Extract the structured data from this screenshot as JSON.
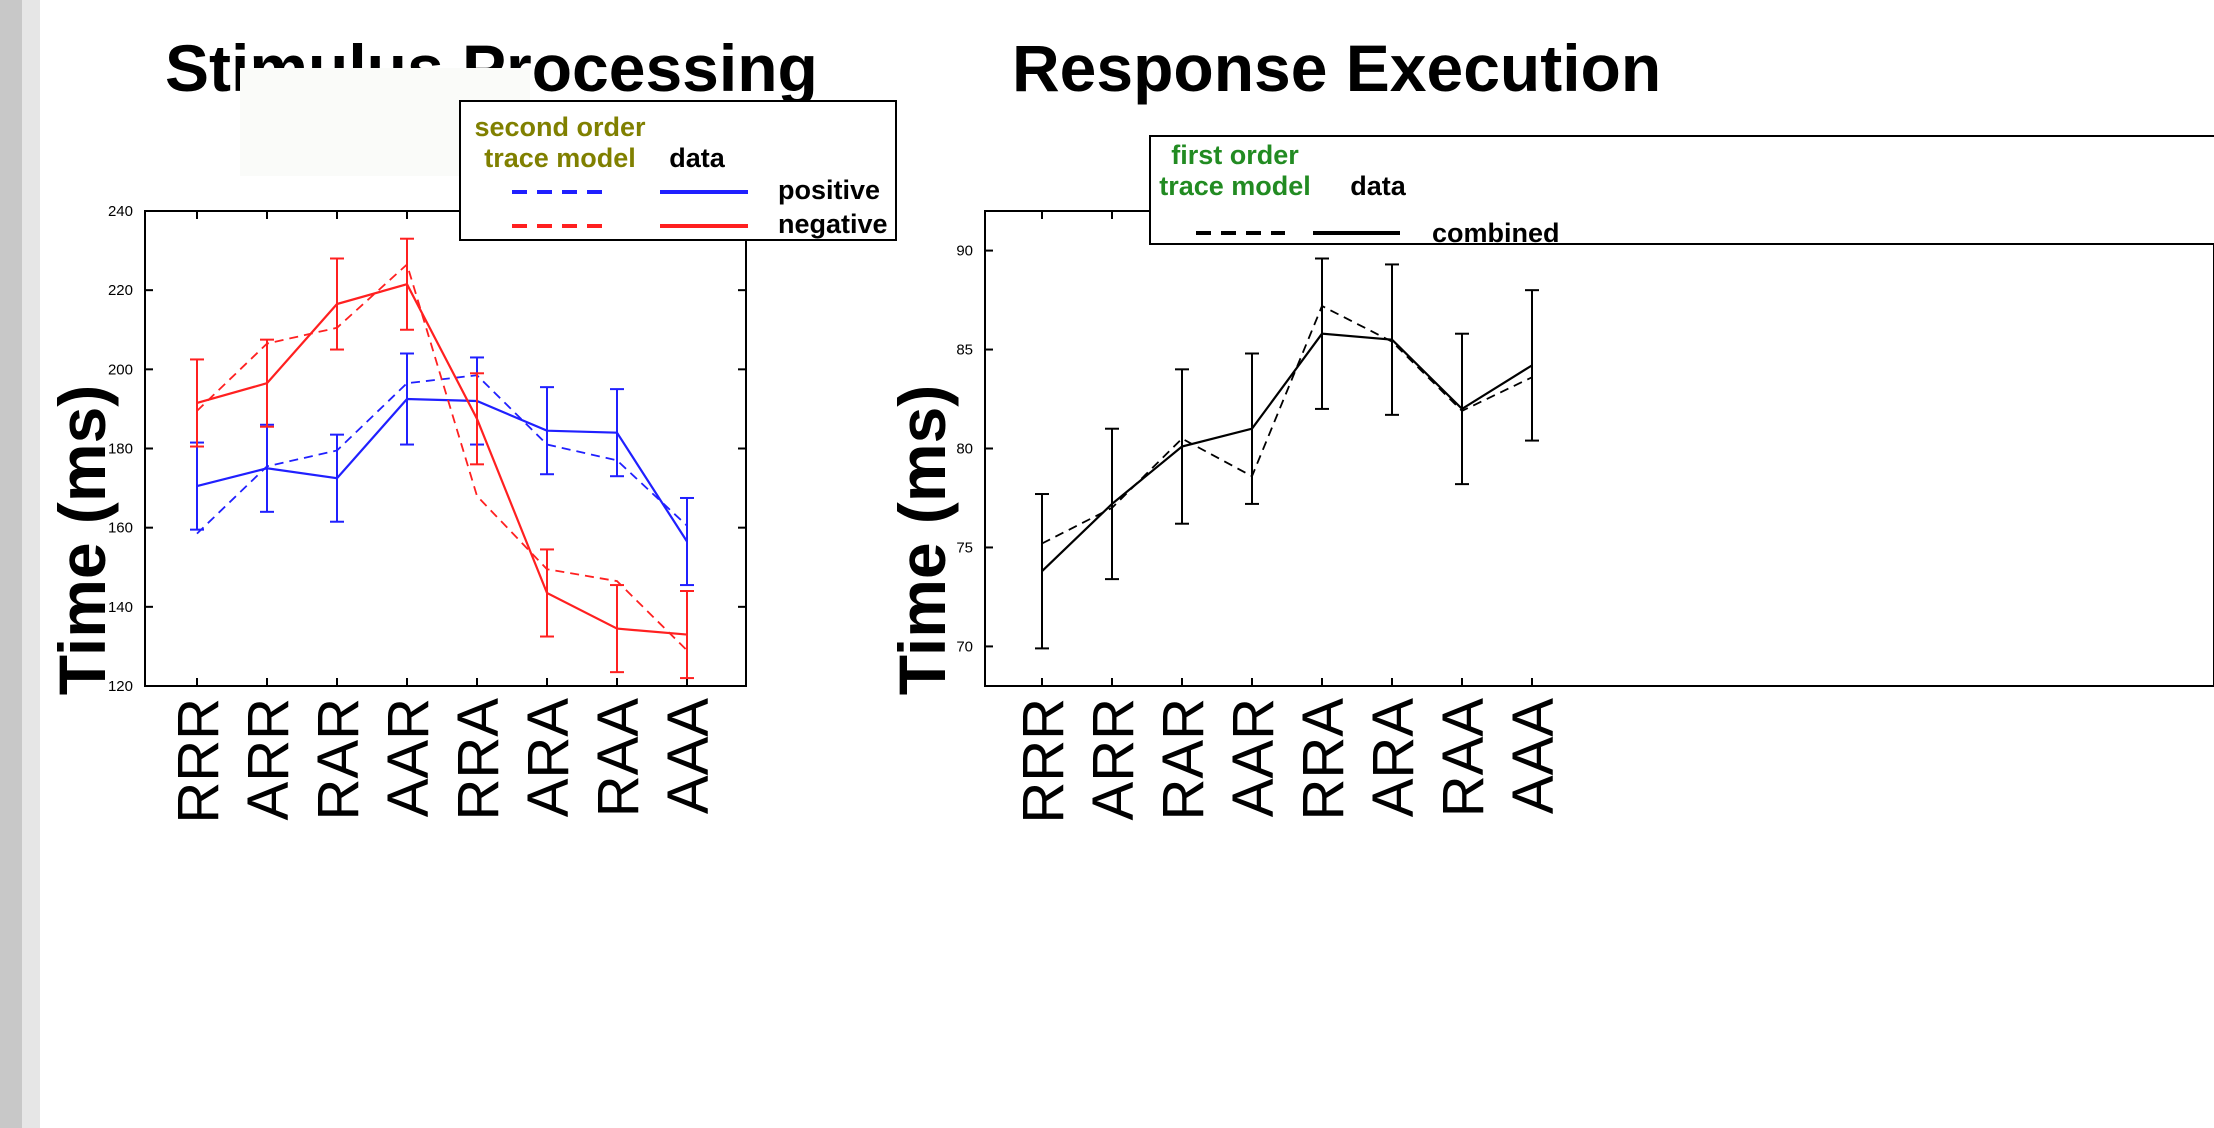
{
  "chart_data": [
    {
      "type": "line",
      "title": "Stimulus Processing",
      "ylabel": "Time (ms)",
      "xlabel": "",
      "categories": [
        "RRR",
        "ARR",
        "RAR",
        "AAR",
        "RRA",
        "ARA",
        "RAA",
        "AAA"
      ],
      "ylim": [
        120,
        240
      ],
      "yticks": [
        "120",
        "140",
        "160",
        "180",
        "200",
        "220",
        "240"
      ],
      "grid": false,
      "legend": {
        "placement": "top-right",
        "model_header": "second order trace model",
        "model_header_lines": [
          "second order",
          "trace model"
        ],
        "data_header": "data",
        "rows": [
          "positive",
          "negative"
        ]
      },
      "series": [
        {
          "name": "positive",
          "style": "data",
          "color": "#2020ff",
          "values": [
            170.5,
            175,
            172.5,
            192.5,
            192,
            184.5,
            184,
            156.5
          ],
          "err": [
            11,
            11,
            11,
            11.5,
            11,
            11,
            11,
            11
          ]
        },
        {
          "name": "positive",
          "style": "model",
          "color": "#2020ff",
          "values": [
            158.5,
            175.5,
            179.5,
            196.5,
            198.5,
            181,
            177,
            160.5
          ]
        },
        {
          "name": "negative",
          "style": "data",
          "color": "#ff2020",
          "values": [
            191.5,
            196.5,
            216.5,
            221.5,
            187.5,
            143.5,
            134.5,
            133
          ],
          "err": [
            11,
            11,
            11.5,
            11.5,
            11.5,
            11,
            11,
            11
          ]
        },
        {
          "name": "negative",
          "style": "model",
          "color": "#ff2020",
          "values": [
            189.5,
            206.5,
            210.5,
            226.5,
            168,
            149.5,
            146.5,
            129
          ]
        }
      ],
      "colors": {
        "header": "#808000"
      }
    },
    {
      "type": "line",
      "title": "Response Execution",
      "ylabel": "Time (ms)",
      "xlabel": "",
      "categories": [
        "RRR",
        "ARR",
        "RAR",
        "AAR",
        "RRA",
        "ARA",
        "RAA",
        "AAA"
      ],
      "ylim": [
        68,
        92
      ],
      "yticks": [
        "70",
        "75",
        "80",
        "85",
        "90"
      ],
      "grid": false,
      "legend": {
        "placement": "top-right",
        "model_header": "first order trace model",
        "model_header_lines": [
          "first order",
          "trace model"
        ],
        "data_header": "data",
        "rows": [
          "combined"
        ]
      },
      "series": [
        {
          "name": "combined",
          "style": "data",
          "color": "#000000",
          "values": [
            73.8,
            77.2,
            80.1,
            81,
            85.8,
            85.5,
            82,
            84.2
          ],
          "err": [
            3.9,
            3.8,
            3.9,
            3.8,
            3.8,
            3.8,
            3.8,
            3.8
          ]
        },
        {
          "name": "combined",
          "style": "model",
          "color": "#000000",
          "values": [
            75.2,
            77,
            80.5,
            78.6,
            87.2,
            85.4,
            81.9,
            83.6
          ]
        }
      ],
      "colors": {
        "header": "#228b22"
      }
    }
  ]
}
